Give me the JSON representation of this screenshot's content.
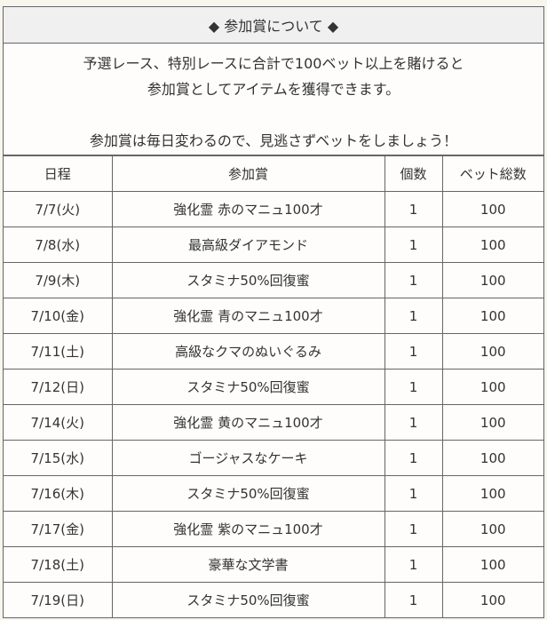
{
  "title": "◆ 参加賞について ◆",
  "intro": {
    "line1": "予選レース、特別レースに合計で100ベット以上を賭けると",
    "line2": "参加賞としてアイテムを獲得できます。",
    "line3": "参加賞は毎日変わるので、見逃さずベットをしましょう！"
  },
  "table": {
    "headers": [
      "日程",
      "参加賞",
      "個数",
      "ベット総数"
    ],
    "rows": [
      [
        "7/7(火)",
        "強化霊 赤のマニュ100才",
        "1",
        "100"
      ],
      [
        "7/8(水)",
        "最高級ダイアモンド",
        "1",
        "100"
      ],
      [
        "7/9(木)",
        "スタミナ50%回復蜜",
        "1",
        "100"
      ],
      [
        "7/10(金)",
        "強化霊 青のマニュ100才",
        "1",
        "100"
      ],
      [
        "7/11(土)",
        "高級なクマのぬいぐるみ",
        "1",
        "100"
      ],
      [
        "7/12(日)",
        "スタミナ50%回復蜜",
        "1",
        "100"
      ],
      [
        "7/14(火)",
        "強化霊 黄のマニュ100才",
        "1",
        "100"
      ],
      [
        "7/15(水)",
        "ゴージャスなケーキ",
        "1",
        "100"
      ],
      [
        "7/16(木)",
        "スタミナ50%回復蜜",
        "1",
        "100"
      ],
      [
        "7/17(金)",
        "強化霊 紫のマニュ100才",
        "1",
        "100"
      ],
      [
        "7/18(土)",
        "豪華な文学書",
        "1",
        "100"
      ],
      [
        "7/19(日)",
        "スタミナ50%回復蜜",
        "1",
        "100"
      ]
    ]
  }
}
